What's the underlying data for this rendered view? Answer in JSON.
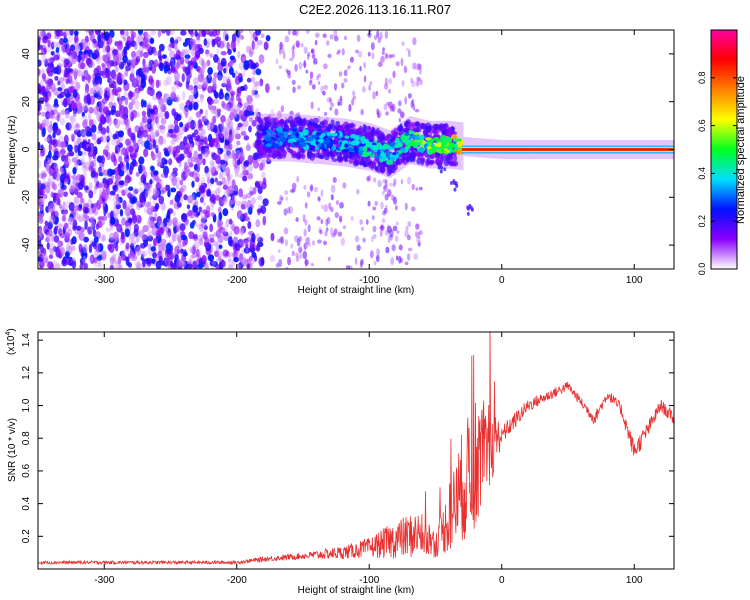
{
  "title": "C2E2.2026.113.16.11.R07",
  "chart_data": [
    {
      "type": "heatmap",
      "name": "spectrogram",
      "xlabel": "Height of straight line (km)",
      "ylabel": "Frequency (Hz)",
      "xlim": [
        -350,
        130
      ],
      "ylim": [
        -50,
        50
      ],
      "xticks": [
        -300,
        -200,
        -100,
        0,
        100
      ],
      "xtick_labels": [
        "-300",
        "-200",
        "-100",
        "0",
        "100"
      ],
      "yticks": [
        -40,
        -20,
        0,
        20,
        40
      ],
      "ytick_labels": [
        "-40",
        "-20",
        "0",
        "20",
        "40"
      ],
      "colorbar": {
        "label": "Normalized spectral amplitude",
        "range": [
          0,
          1
        ],
        "ticks": [
          0.0,
          0.2,
          0.4,
          0.6,
          0.8
        ],
        "tick_labels": [
          "0.0",
          "0.2",
          "0.4",
          "0.6",
          "0.8"
        ],
        "colors": [
          "#ffffff",
          "#8a00ff",
          "#0010ff",
          "#00e0ff",
          "#00ff20",
          "#ffff00",
          "#ff8000",
          "#ff0000",
          "#ff00a0"
        ]
      },
      "ridge": [
        {
          "x": -180,
          "f": 5,
          "amp": 0.3
        },
        {
          "x": -160,
          "f": 5,
          "amp": 0.35
        },
        {
          "x": -140,
          "f": 4,
          "amp": 0.38
        },
        {
          "x": -120,
          "f": 3,
          "amp": 0.4
        },
        {
          "x": -100,
          "f": 1,
          "amp": 0.42
        },
        {
          "x": -85,
          "f": -2,
          "amp": 0.4
        },
        {
          "x": -70,
          "f": 4,
          "amp": 0.5
        },
        {
          "x": -55,
          "f": 2,
          "amp": 0.55
        },
        {
          "x": -40,
          "f": 2,
          "amp": 0.6
        },
        {
          "x": -25,
          "f": 1,
          "amp": 0.8
        },
        {
          "x": 0,
          "f": 0,
          "amp": 0.85
        },
        {
          "x": 130,
          "f": 0,
          "amp": 0.85
        }
      ],
      "tail": [
        {
          "x": -45,
          "f": -8
        },
        {
          "x": -35,
          "f": -15
        },
        {
          "x": -25,
          "f": -25
        }
      ]
    },
    {
      "type": "line",
      "name": "snr",
      "xlabel": "Height of straight line (km)",
      "ylabel": "SNR (10 * v/v)",
      "y_multiplier": "(x10",
      "y_multiplier_exp": "4",
      "y_multiplier_close": ")",
      "xlim": [
        -350,
        130
      ],
      "ylim": [
        0,
        1.45
      ],
      "xticks": [
        -300,
        -200,
        -100,
        0,
        100
      ],
      "xtick_labels": [
        "-300",
        "-200",
        "-100",
        "0",
        "100"
      ],
      "yticks": [
        0.2,
        0.4,
        0.6,
        0.8,
        1.0,
        1.2,
        1.4
      ],
      "ytick_labels": [
        "0.2",
        "0.4",
        "0.6",
        "0.8",
        "1.0",
        "1.2",
        "1.4"
      ],
      "color": "#e83030",
      "envelope": [
        {
          "x": -350,
          "y": 0.04,
          "noise": 0.01
        },
        {
          "x": -200,
          "y": 0.04,
          "noise": 0.01
        },
        {
          "x": -180,
          "y": 0.06,
          "noise": 0.015
        },
        {
          "x": -150,
          "y": 0.08,
          "noise": 0.02
        },
        {
          "x": -120,
          "y": 0.1,
          "noise": 0.04
        },
        {
          "x": -100,
          "y": 0.13,
          "noise": 0.06
        },
        {
          "x": -80,
          "y": 0.18,
          "noise": 0.12
        },
        {
          "x": -60,
          "y": 0.22,
          "noise": 0.15
        },
        {
          "x": -50,
          "y": 0.15,
          "noise": 0.08
        },
        {
          "x": -40,
          "y": 0.3,
          "noise": 0.2
        },
        {
          "x": -30,
          "y": 0.5,
          "noise": 0.35
        },
        {
          "x": -20,
          "y": 0.65,
          "noise": 0.4
        },
        {
          "x": -10,
          "y": 0.75,
          "noise": 0.3
        },
        {
          "x": 0,
          "y": 0.82,
          "noise": 0.06
        },
        {
          "x": 20,
          "y": 1.0,
          "noise": 0.04
        },
        {
          "x": 40,
          "y": 1.08,
          "noise": 0.03
        },
        {
          "x": 50,
          "y": 1.12,
          "noise": 0.03
        },
        {
          "x": 60,
          "y": 1.02,
          "noise": 0.03
        },
        {
          "x": 70,
          "y": 0.92,
          "noise": 0.04
        },
        {
          "x": 80,
          "y": 1.07,
          "noise": 0.03
        },
        {
          "x": 90,
          "y": 0.98,
          "noise": 0.04
        },
        {
          "x": 100,
          "y": 0.72,
          "noise": 0.06
        },
        {
          "x": 110,
          "y": 0.85,
          "noise": 0.05
        },
        {
          "x": 120,
          "y": 1.0,
          "noise": 0.04
        },
        {
          "x": 130,
          "y": 0.92,
          "noise": 0.04
        }
      ]
    }
  ]
}
